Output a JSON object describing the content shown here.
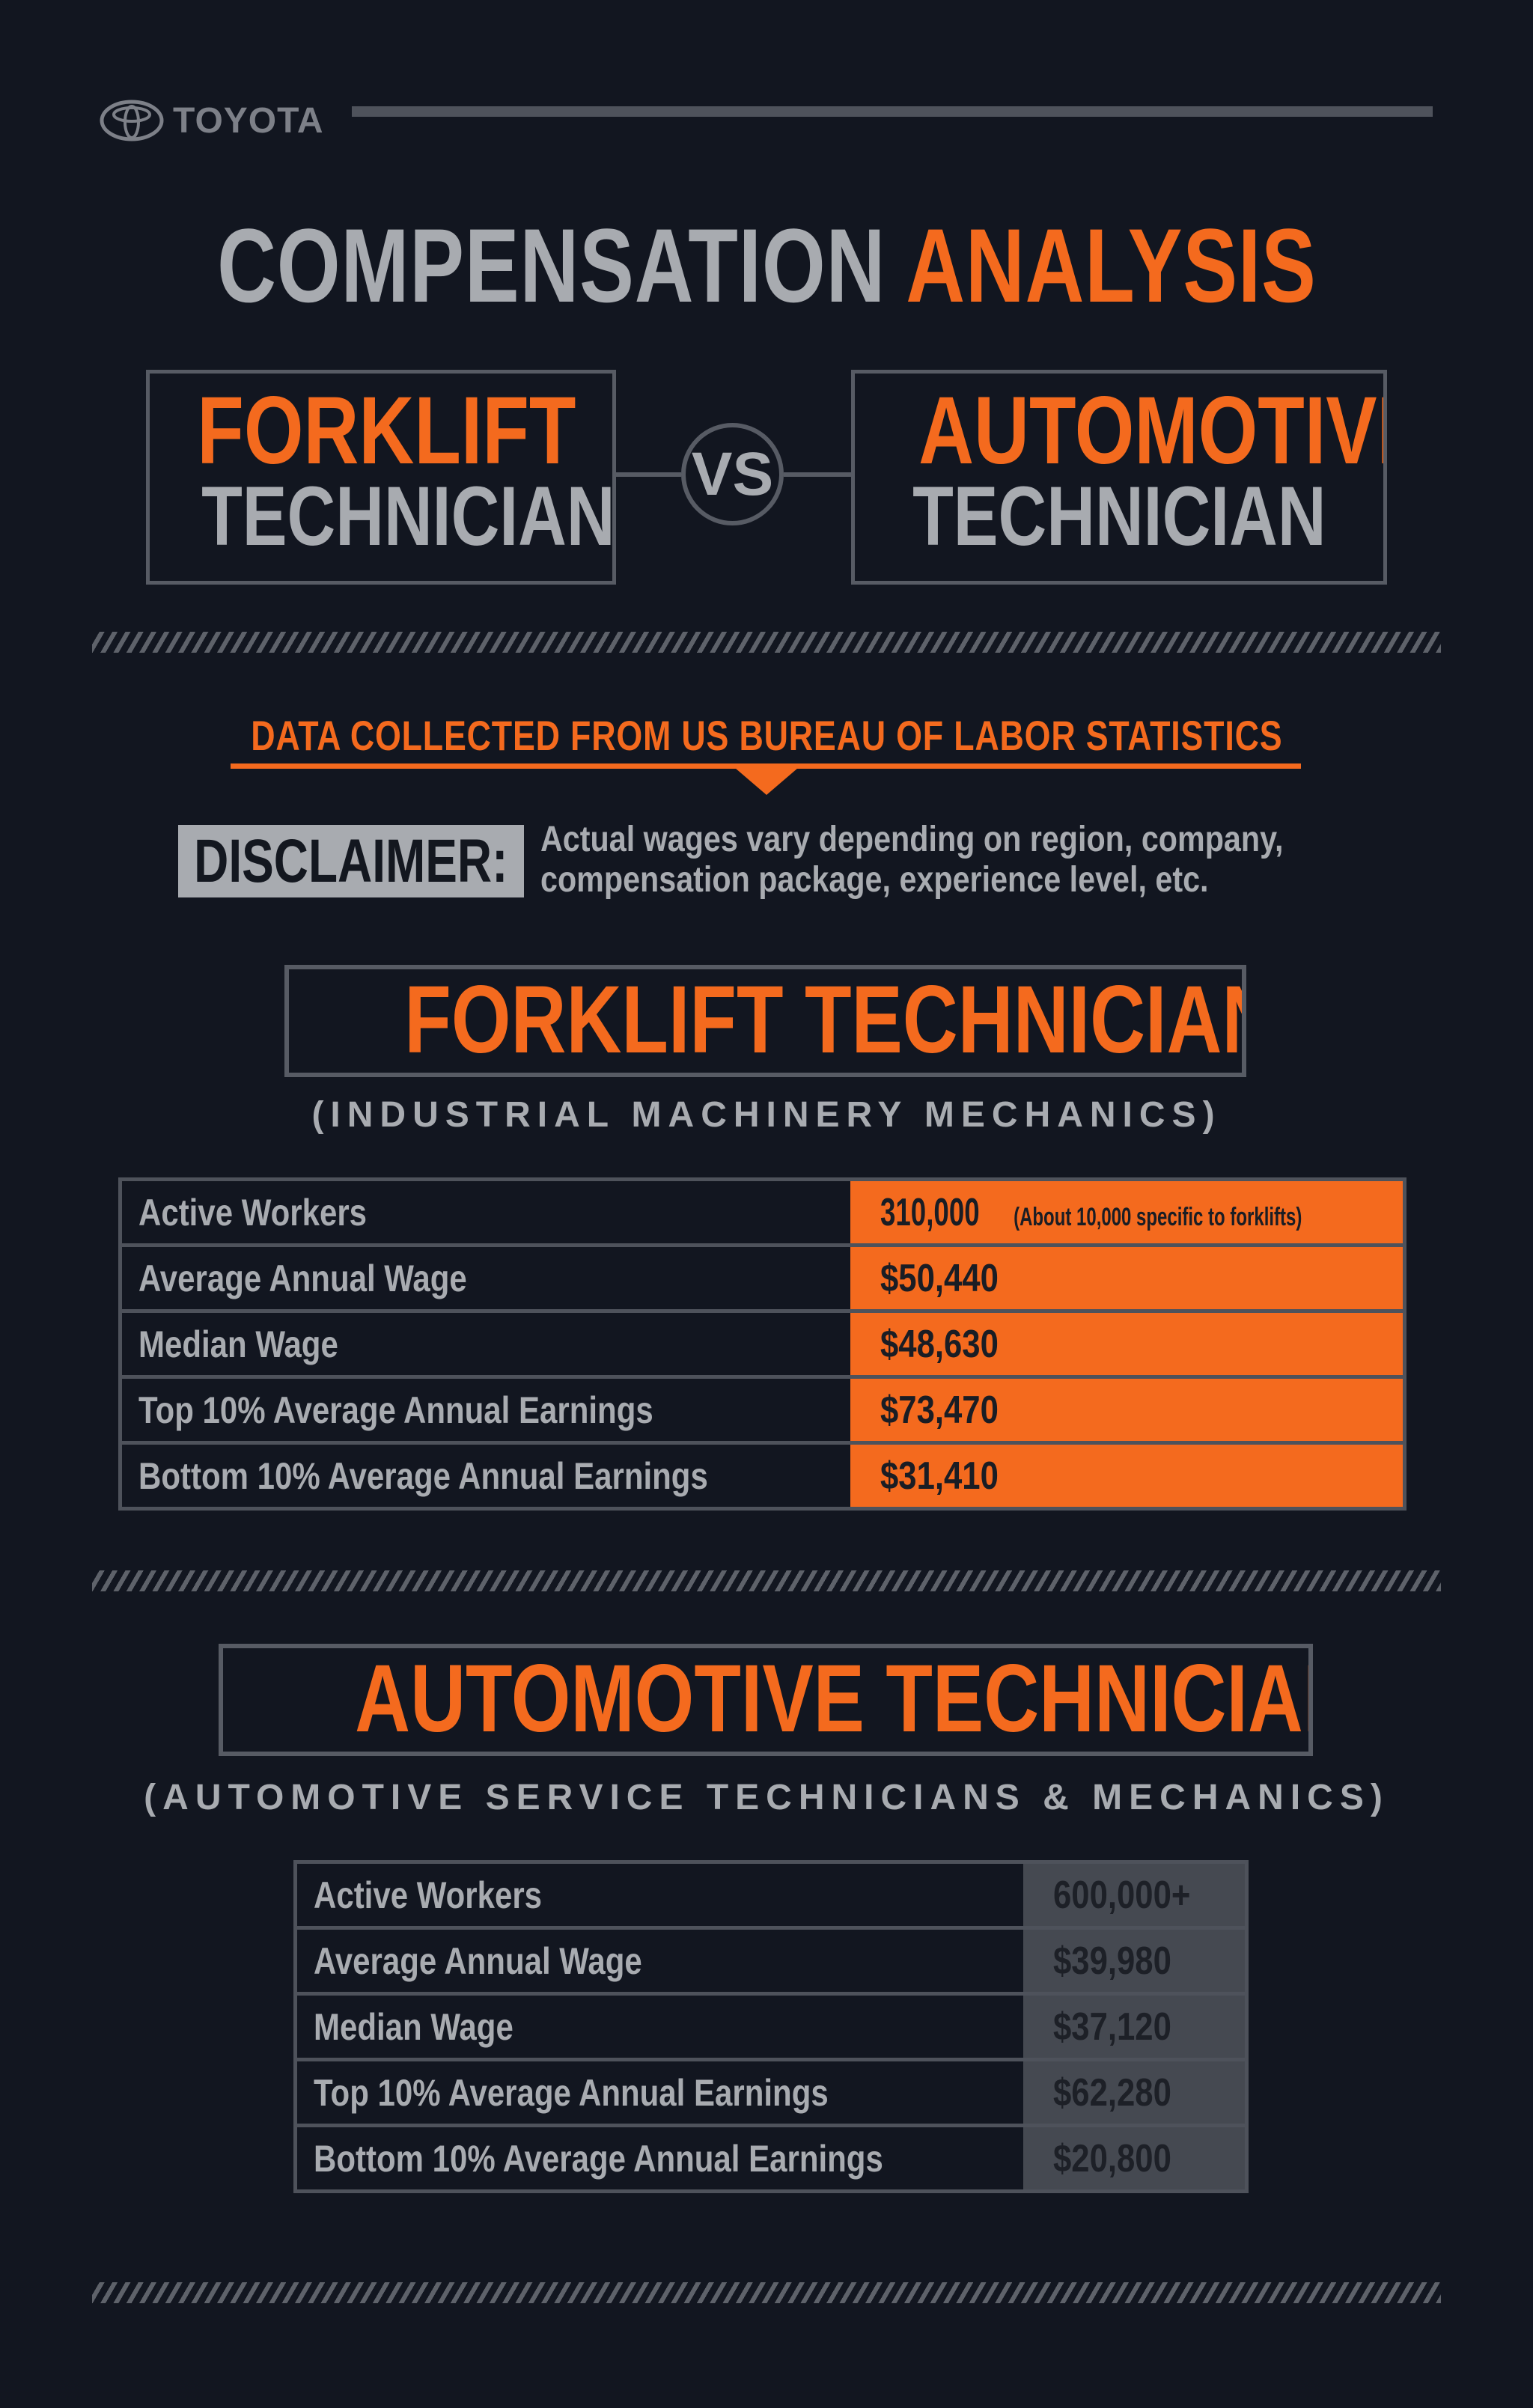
{
  "brand": {
    "name": "TOYOTA",
    "logo_icon": "toyota-emblem-icon"
  },
  "title": {
    "part1": "COMPENSATION",
    "part2": "ANALYSIS"
  },
  "comparison": {
    "left": {
      "line1": "FORKLIFT",
      "line2": "TECHNICIAN"
    },
    "vs": "VS",
    "right": {
      "line1": "AUTOMOTIVE",
      "line2": "TECHNICIAN"
    }
  },
  "source": "DATA COLLECTED FROM US BUREAU OF LABOR STATISTICS",
  "disclaimer": {
    "label": "DISCLAIMER:",
    "line1": "Actual wages vary depending on region, company,",
    "line2": "compensation package, experience level, etc."
  },
  "forklift": {
    "heading": "FORKLIFT TECHNICIANS",
    "subheading": "(INDUSTRIAL MACHINERY MECHANICS)",
    "rows": [
      {
        "label": "Active Workers",
        "value": "310,000",
        "note": "(About 10,000 specific to forklifts)"
      },
      {
        "label": "Average Annual Wage",
        "value": "$50,440"
      },
      {
        "label": "Median Wage",
        "value": "$48,630"
      },
      {
        "label": "Top 10% Average Annual Earnings",
        "value": "$73,470"
      },
      {
        "label": "Bottom 10% Average Annual Earnings",
        "value": "$31,410"
      }
    ]
  },
  "automotive": {
    "heading": "AUTOMOTIVE TECHNICIANS",
    "subheading": "(AUTOMOTIVE SERVICE TECHNICIANS & MECHANICS)",
    "rows": [
      {
        "label": "Active Workers",
        "value": "600,000+"
      },
      {
        "label": "Average Annual Wage",
        "value": "$39,980"
      },
      {
        "label": "Median Wage",
        "value": "$37,120"
      },
      {
        "label": "Top 10% Average Annual Earnings",
        "value": "$62,280"
      },
      {
        "label": "Bottom 10% Average Annual Earnings",
        "value": "$20,800"
      }
    ]
  },
  "colors": {
    "background": "#121620",
    "accent": "#f46a1e",
    "text_grey": "#a8abb0",
    "border_grey": "#575b64"
  }
}
